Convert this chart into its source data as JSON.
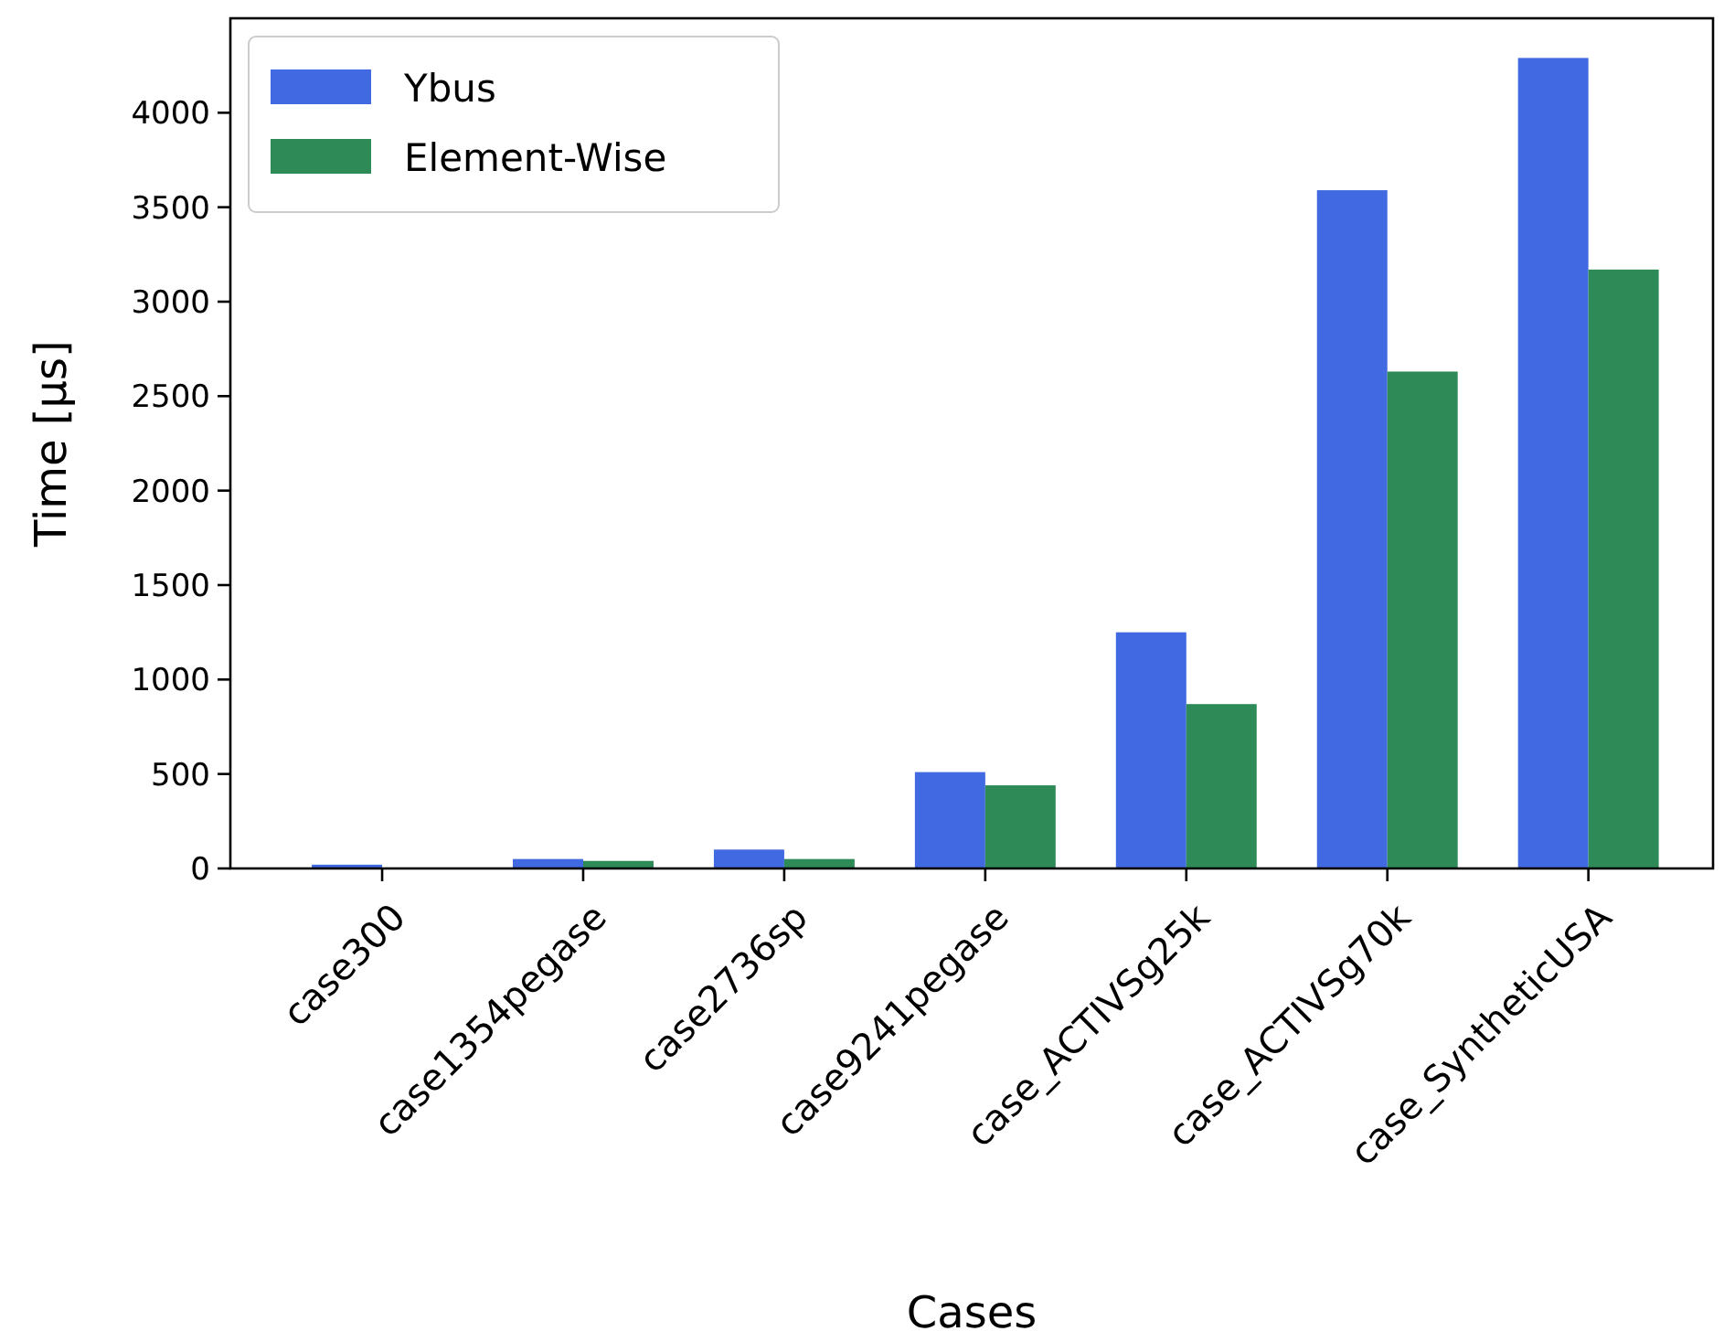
{
  "chart_data": {
    "type": "bar",
    "xlabel": "Cases",
    "ylabel": "Time [μs]",
    "categories": [
      "case300",
      "case1354pegase",
      "case2736sp",
      "case9241pegase",
      "case_ACTIVSg25k",
      "case_ACTIVSg70k",
      "case_SyntheticUSA"
    ],
    "series": [
      {
        "name": "Ybus",
        "color": "#4169e1",
        "values": [
          20,
          50,
          100,
          510,
          1250,
          3590,
          4290
        ]
      },
      {
        "name": "Element-Wise",
        "color": "#2e8b57",
        "values": [
          null,
          40,
          50,
          440,
          870,
          2630,
          3170
        ]
      }
    ],
    "ylim": [
      0,
      4500
    ],
    "yticks": [
      0,
      500,
      1000,
      1500,
      2000,
      2500,
      3000,
      3500,
      4000
    ],
    "grid": false,
    "legend": "top left"
  }
}
